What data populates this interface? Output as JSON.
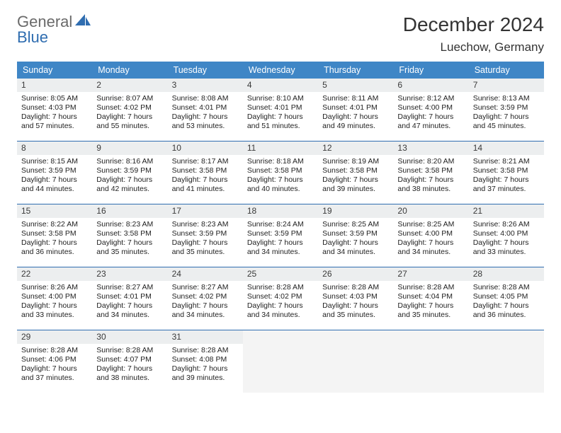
{
  "logo": {
    "word1": "General",
    "word2": "Blue"
  },
  "title": "December 2024",
  "location": "Luechow, Germany",
  "colors": {
    "header_bg": "#3f86c6",
    "header_text": "#ffffff",
    "week_border": "#2f6db0",
    "daynum_bg": "#eceeef",
    "empty_bg": "#f4f4f4",
    "logo_gray": "#6a6a6a",
    "logo_blue": "#2f6db0"
  },
  "dow": [
    "Sunday",
    "Monday",
    "Tuesday",
    "Wednesday",
    "Thursday",
    "Friday",
    "Saturday"
  ],
  "weeks": [
    [
      {
        "n": "1",
        "sr": "8:05 AM",
        "ss": "4:03 PM",
        "dl": "7 hours and 57 minutes."
      },
      {
        "n": "2",
        "sr": "8:07 AM",
        "ss": "4:02 PM",
        "dl": "7 hours and 55 minutes."
      },
      {
        "n": "3",
        "sr": "8:08 AM",
        "ss": "4:01 PM",
        "dl": "7 hours and 53 minutes."
      },
      {
        "n": "4",
        "sr": "8:10 AM",
        "ss": "4:01 PM",
        "dl": "7 hours and 51 minutes."
      },
      {
        "n": "5",
        "sr": "8:11 AM",
        "ss": "4:01 PM",
        "dl": "7 hours and 49 minutes."
      },
      {
        "n": "6",
        "sr": "8:12 AM",
        "ss": "4:00 PM",
        "dl": "7 hours and 47 minutes."
      },
      {
        "n": "7",
        "sr": "8:13 AM",
        "ss": "3:59 PM",
        "dl": "7 hours and 45 minutes."
      }
    ],
    [
      {
        "n": "8",
        "sr": "8:15 AM",
        "ss": "3:59 PM",
        "dl": "7 hours and 44 minutes."
      },
      {
        "n": "9",
        "sr": "8:16 AM",
        "ss": "3:59 PM",
        "dl": "7 hours and 42 minutes."
      },
      {
        "n": "10",
        "sr": "8:17 AM",
        "ss": "3:58 PM",
        "dl": "7 hours and 41 minutes."
      },
      {
        "n": "11",
        "sr": "8:18 AM",
        "ss": "3:58 PM",
        "dl": "7 hours and 40 minutes."
      },
      {
        "n": "12",
        "sr": "8:19 AM",
        "ss": "3:58 PM",
        "dl": "7 hours and 39 minutes."
      },
      {
        "n": "13",
        "sr": "8:20 AM",
        "ss": "3:58 PM",
        "dl": "7 hours and 38 minutes."
      },
      {
        "n": "14",
        "sr": "8:21 AM",
        "ss": "3:58 PM",
        "dl": "7 hours and 37 minutes."
      }
    ],
    [
      {
        "n": "15",
        "sr": "8:22 AM",
        "ss": "3:58 PM",
        "dl": "7 hours and 36 minutes."
      },
      {
        "n": "16",
        "sr": "8:23 AM",
        "ss": "3:58 PM",
        "dl": "7 hours and 35 minutes."
      },
      {
        "n": "17",
        "sr": "8:23 AM",
        "ss": "3:59 PM",
        "dl": "7 hours and 35 minutes."
      },
      {
        "n": "18",
        "sr": "8:24 AM",
        "ss": "3:59 PM",
        "dl": "7 hours and 34 minutes."
      },
      {
        "n": "19",
        "sr": "8:25 AM",
        "ss": "3:59 PM",
        "dl": "7 hours and 34 minutes."
      },
      {
        "n": "20",
        "sr": "8:25 AM",
        "ss": "4:00 PM",
        "dl": "7 hours and 34 minutes."
      },
      {
        "n": "21",
        "sr": "8:26 AM",
        "ss": "4:00 PM",
        "dl": "7 hours and 33 minutes."
      }
    ],
    [
      {
        "n": "22",
        "sr": "8:26 AM",
        "ss": "4:00 PM",
        "dl": "7 hours and 33 minutes."
      },
      {
        "n": "23",
        "sr": "8:27 AM",
        "ss": "4:01 PM",
        "dl": "7 hours and 34 minutes."
      },
      {
        "n": "24",
        "sr": "8:27 AM",
        "ss": "4:02 PM",
        "dl": "7 hours and 34 minutes."
      },
      {
        "n": "25",
        "sr": "8:28 AM",
        "ss": "4:02 PM",
        "dl": "7 hours and 34 minutes."
      },
      {
        "n": "26",
        "sr": "8:28 AM",
        "ss": "4:03 PM",
        "dl": "7 hours and 35 minutes."
      },
      {
        "n": "27",
        "sr": "8:28 AM",
        "ss": "4:04 PM",
        "dl": "7 hours and 35 minutes."
      },
      {
        "n": "28",
        "sr": "8:28 AM",
        "ss": "4:05 PM",
        "dl": "7 hours and 36 minutes."
      }
    ],
    [
      {
        "n": "29",
        "sr": "8:28 AM",
        "ss": "4:06 PM",
        "dl": "7 hours and 37 minutes."
      },
      {
        "n": "30",
        "sr": "8:28 AM",
        "ss": "4:07 PM",
        "dl": "7 hours and 38 minutes."
      },
      {
        "n": "31",
        "sr": "8:28 AM",
        "ss": "4:08 PM",
        "dl": "7 hours and 39 minutes."
      },
      null,
      null,
      null,
      null
    ]
  ],
  "labels": {
    "sunrise": "Sunrise:",
    "sunset": "Sunset:",
    "daylight": "Daylight:"
  }
}
